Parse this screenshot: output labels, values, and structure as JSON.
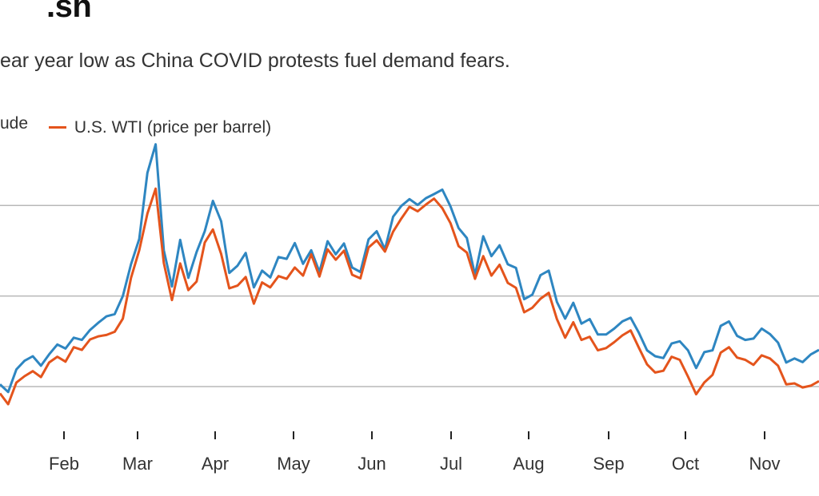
{
  "header": {
    "title": ".sh",
    "subtitle": "ear year low as China COVID protests fuel demand fears."
  },
  "legend": [
    {
      "label": "ude",
      "color": "#2e86c1"
    },
    {
      "label": "U.S. WTI (price per barrel)",
      "color": "#e4541c"
    }
  ],
  "chart_data": {
    "type": "line",
    "title": ".sh",
    "subtitle": "ear year low as China COVID protests fuel demand fears.",
    "xlabel": "",
    "ylabel": "",
    "x_ticks": [
      "Feb",
      "Mar",
      "Apr",
      "May",
      "Jun",
      "Jul",
      "Aug",
      "Sep",
      "Oct",
      "Nov"
    ],
    "ylim": [
      70,
      135
    ],
    "gridlines_y": [
      80,
      100,
      120
    ],
    "grid": true,
    "legend_position": "top-left",
    "series": [
      {
        "name": "ude",
        "color": "#2e86c1",
        "points": [
          [
            0,
            80.5
          ],
          [
            2,
            78.8
          ],
          [
            4,
            83.8
          ],
          [
            6,
            85.7
          ],
          [
            8,
            86.7
          ],
          [
            10,
            84.6
          ],
          [
            12,
            87.1
          ],
          [
            14,
            89.3
          ],
          [
            16,
            88.4
          ],
          [
            18,
            90.8
          ],
          [
            20,
            90.3
          ],
          [
            22,
            92.5
          ],
          [
            24,
            94.1
          ],
          [
            26,
            95.5
          ],
          [
            28,
            96.0
          ],
          [
            30,
            100.0
          ],
          [
            32,
            107.0
          ],
          [
            34,
            112.6
          ],
          [
            36,
            127.2
          ],
          [
            38,
            133.5
          ],
          [
            40,
            110.1
          ],
          [
            42,
            102.1
          ],
          [
            44,
            112.4
          ],
          [
            46,
            104.0
          ],
          [
            48,
            109.7
          ],
          [
            50,
            114.3
          ],
          [
            52,
            121.0
          ],
          [
            54,
            116.5
          ],
          [
            56,
            105.1
          ],
          [
            58,
            106.7
          ],
          [
            60,
            109.5
          ],
          [
            62,
            101.9
          ],
          [
            64,
            105.6
          ],
          [
            66,
            104.1
          ],
          [
            68,
            108.6
          ],
          [
            70,
            108.2
          ],
          [
            72,
            111.7
          ],
          [
            74,
            107.1
          ],
          [
            76,
            110.1
          ],
          [
            78,
            105.3
          ],
          [
            80,
            112.1
          ],
          [
            82,
            109.2
          ],
          [
            84,
            111.6
          ],
          [
            86,
            106.3
          ],
          [
            88,
            105.3
          ],
          [
            90,
            112.5
          ],
          [
            92,
            114.3
          ],
          [
            94,
            110.3
          ],
          [
            96,
            117.5
          ],
          [
            98,
            119.9
          ],
          [
            100,
            121.4
          ],
          [
            102,
            120.1
          ],
          [
            104,
            121.6
          ],
          [
            106,
            122.5
          ],
          [
            108,
            123.5
          ],
          [
            110,
            119.8
          ],
          [
            112,
            115.0
          ],
          [
            114,
            112.8
          ],
          [
            116,
            104.6
          ],
          [
            118,
            113.2
          ],
          [
            120,
            108.8
          ],
          [
            122,
            111.2
          ],
          [
            124,
            107.0
          ],
          [
            126,
            106.2
          ],
          [
            128,
            99.3
          ],
          [
            130,
            100.3
          ],
          [
            132,
            104.6
          ],
          [
            134,
            105.6
          ],
          [
            136,
            98.7
          ],
          [
            138,
            95.0
          ],
          [
            140,
            98.5
          ],
          [
            142,
            93.9
          ],
          [
            144,
            94.9
          ],
          [
            146,
            91.5
          ],
          [
            148,
            91.5
          ],
          [
            150,
            92.8
          ],
          [
            152,
            94.4
          ],
          [
            154,
            95.2
          ],
          [
            156,
            91.9
          ],
          [
            158,
            88.0
          ],
          [
            160,
            86.7
          ],
          [
            162,
            86.3
          ],
          [
            164,
            89.5
          ],
          [
            166,
            90.0
          ],
          [
            168,
            88.0
          ],
          [
            170,
            84.1
          ],
          [
            172,
            87.6
          ],
          [
            174,
            88.0
          ],
          [
            176,
            93.4
          ],
          [
            178,
            94.4
          ],
          [
            180,
            91.2
          ],
          [
            182,
            90.3
          ],
          [
            184,
            90.6
          ],
          [
            186,
            92.8
          ],
          [
            188,
            91.6
          ],
          [
            190,
            89.7
          ],
          [
            192,
            85.3
          ],
          [
            194,
            86.2
          ],
          [
            196,
            85.4
          ],
          [
            198,
            87.1
          ],
          [
            200,
            88.1
          ]
        ]
      },
      {
        "name": "U.S. WTI (price per barrel)",
        "color": "#e4541c",
        "points": [
          [
            0,
            78.5
          ],
          [
            2,
            76.1
          ],
          [
            4,
            80.9
          ],
          [
            6,
            82.3
          ],
          [
            8,
            83.4
          ],
          [
            10,
            82.1
          ],
          [
            12,
            85.3
          ],
          [
            14,
            86.6
          ],
          [
            16,
            85.5
          ],
          [
            18,
            88.7
          ],
          [
            20,
            88.1
          ],
          [
            22,
            90.4
          ],
          [
            24,
            91.1
          ],
          [
            26,
            91.4
          ],
          [
            28,
            92.1
          ],
          [
            30,
            95.0
          ],
          [
            32,
            104.0
          ],
          [
            34,
            110.1
          ],
          [
            36,
            118.2
          ],
          [
            38,
            123.7
          ],
          [
            40,
            107.3
          ],
          [
            42,
            99.1
          ],
          [
            44,
            107.2
          ],
          [
            46,
            101.3
          ],
          [
            48,
            103.2
          ],
          [
            50,
            111.8
          ],
          [
            52,
            114.7
          ],
          [
            54,
            109.3
          ],
          [
            56,
            101.7
          ],
          [
            58,
            102.3
          ],
          [
            60,
            104.2
          ],
          [
            62,
            98.3
          ],
          [
            64,
            103.0
          ],
          [
            66,
            101.9
          ],
          [
            68,
            104.4
          ],
          [
            70,
            103.8
          ],
          [
            72,
            106.3
          ],
          [
            74,
            104.5
          ],
          [
            76,
            109.2
          ],
          [
            78,
            104.3
          ],
          [
            80,
            110.3
          ],
          [
            82,
            108.0
          ],
          [
            84,
            110.0
          ],
          [
            86,
            104.7
          ],
          [
            88,
            103.9
          ],
          [
            90,
            110.7
          ],
          [
            92,
            112.3
          ],
          [
            94,
            109.8
          ],
          [
            96,
            114.2
          ],
          [
            98,
            117.1
          ],
          [
            100,
            119.7
          ],
          [
            102,
            118.7
          ],
          [
            104,
            120.2
          ],
          [
            106,
            121.5
          ],
          [
            108,
            119.4
          ],
          [
            110,
            116.1
          ],
          [
            112,
            111.0
          ],
          [
            114,
            109.6
          ],
          [
            116,
            103.8
          ],
          [
            118,
            108.8
          ],
          [
            120,
            104.5
          ],
          [
            122,
            106.9
          ],
          [
            124,
            102.9
          ],
          [
            126,
            101.8
          ],
          [
            128,
            96.4
          ],
          [
            130,
            97.4
          ],
          [
            132,
            99.4
          ],
          [
            134,
            100.7
          ],
          [
            136,
            94.9
          ],
          [
            138,
            90.8
          ],
          [
            140,
            94.2
          ],
          [
            142,
            90.3
          ],
          [
            144,
            91.0
          ],
          [
            146,
            88.0
          ],
          [
            148,
            88.5
          ],
          [
            150,
            89.8
          ],
          [
            152,
            91.3
          ],
          [
            154,
            92.4
          ],
          [
            156,
            88.6
          ],
          [
            158,
            84.9
          ],
          [
            160,
            83.1
          ],
          [
            162,
            83.5
          ],
          [
            164,
            86.6
          ],
          [
            166,
            85.9
          ],
          [
            168,
            82.2
          ],
          [
            170,
            78.3
          ],
          [
            172,
            80.9
          ],
          [
            174,
            82.6
          ],
          [
            176,
            87.5
          ],
          [
            178,
            88.7
          ],
          [
            180,
            86.4
          ],
          [
            182,
            85.9
          ],
          [
            184,
            84.8
          ],
          [
            186,
            86.9
          ],
          [
            188,
            86.2
          ],
          [
            190,
            84.6
          ],
          [
            192,
            80.5
          ],
          [
            194,
            80.7
          ],
          [
            196,
            79.8
          ],
          [
            198,
            80.2
          ],
          [
            200,
            81.2
          ]
        ]
      }
    ]
  }
}
